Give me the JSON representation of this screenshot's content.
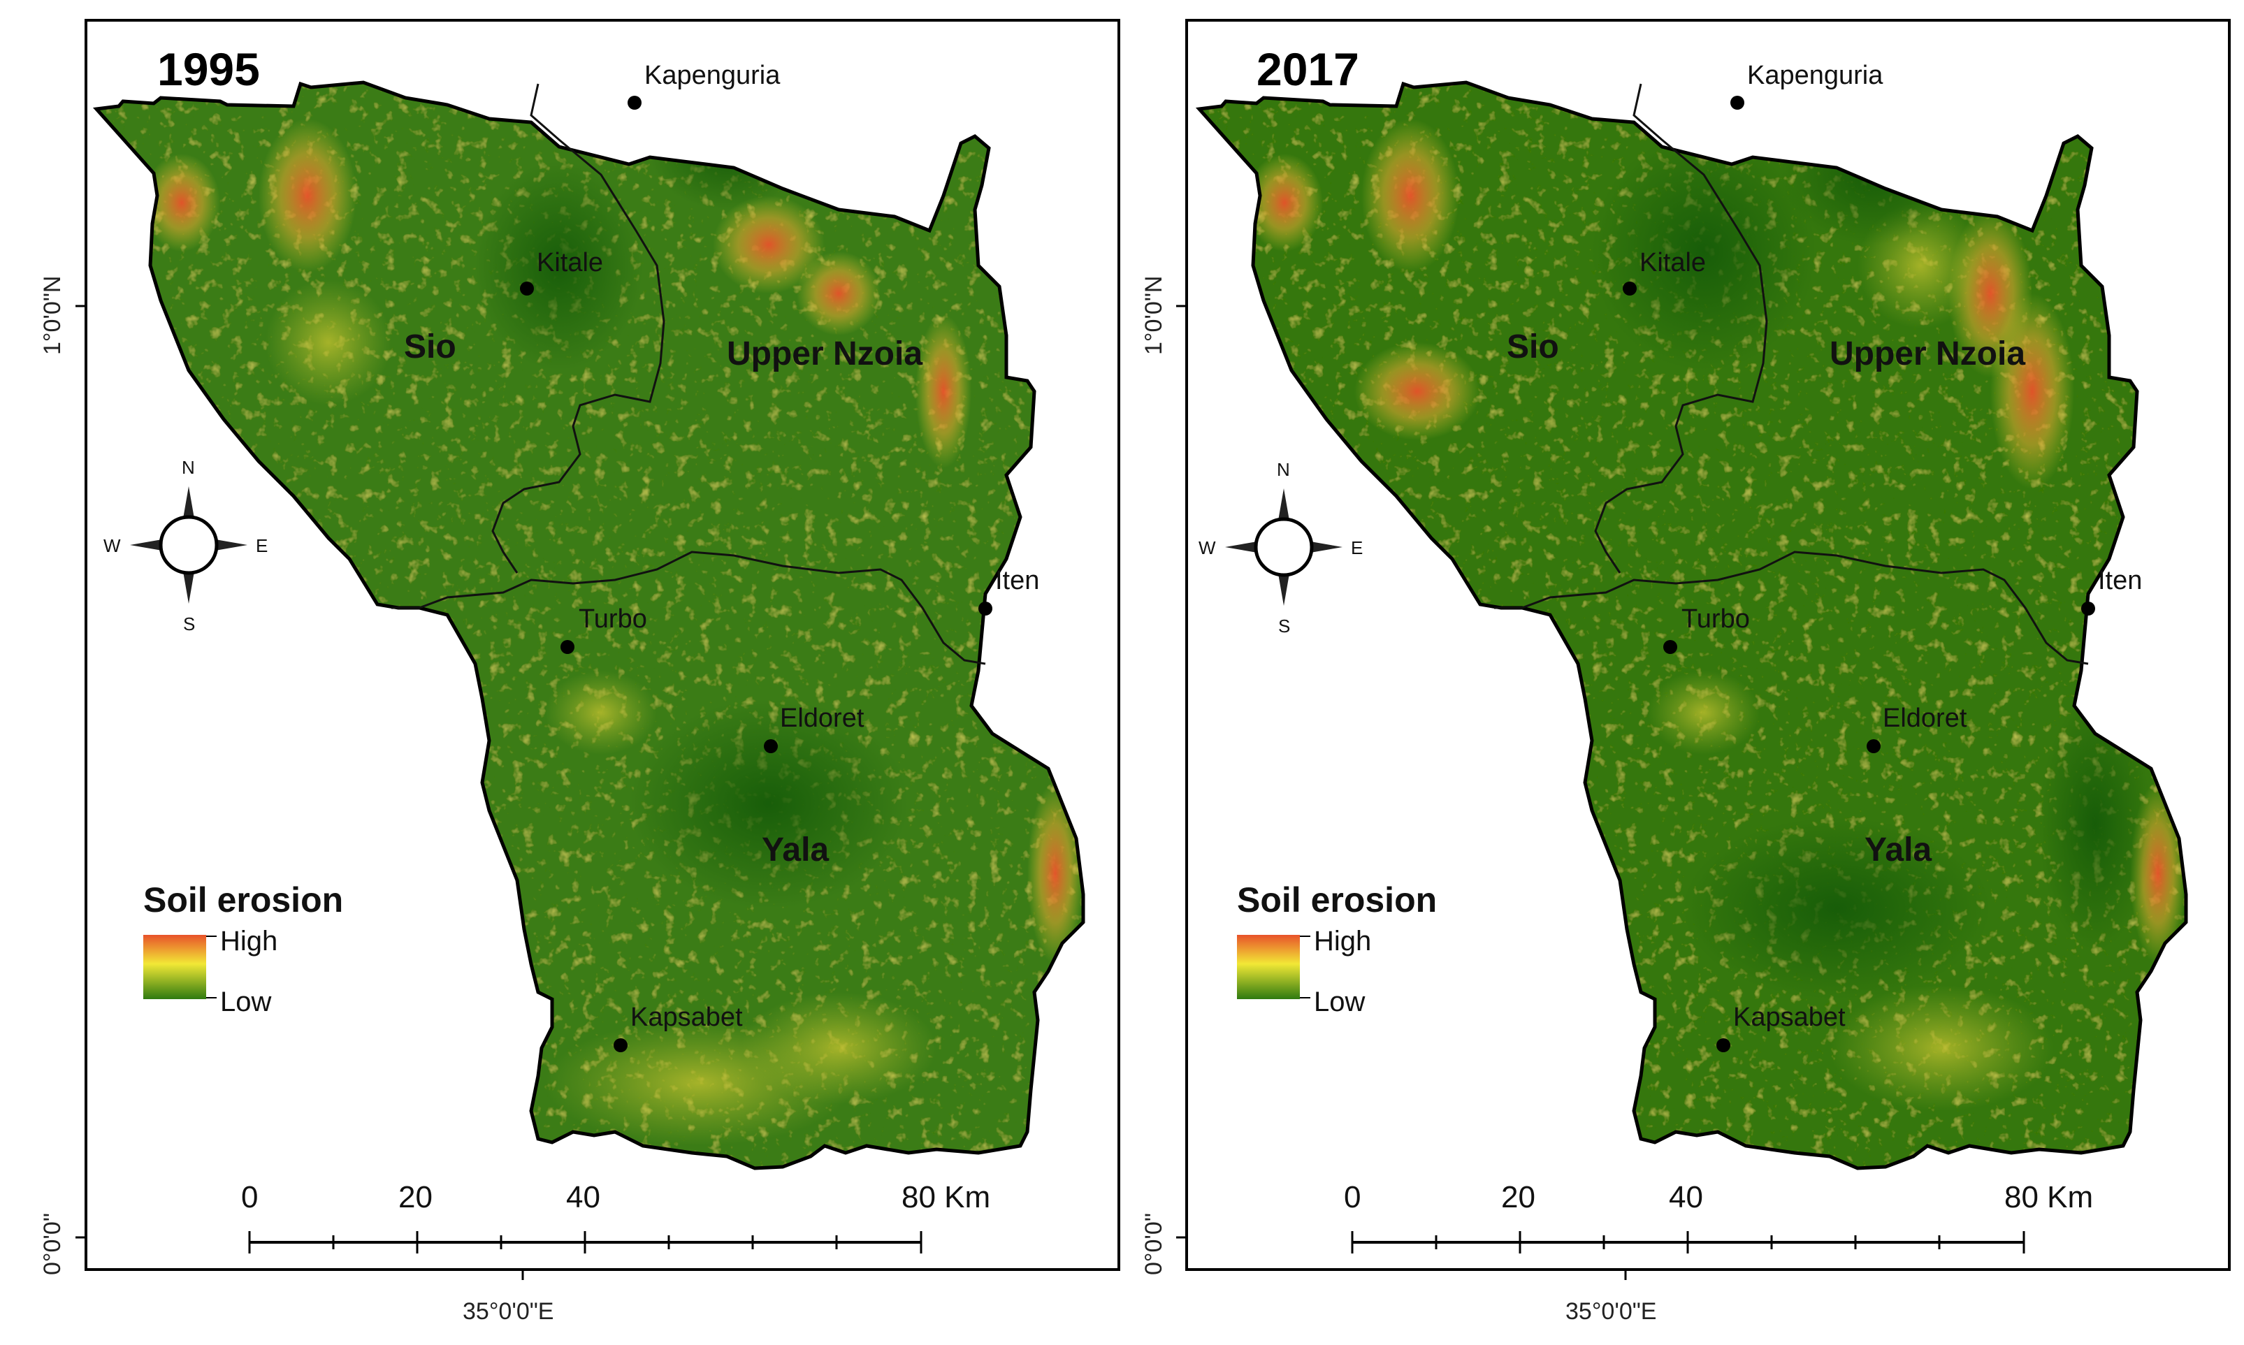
{
  "panels": [
    {
      "year": "1995",
      "regions": [
        "Sio",
        "Upper Nzoia",
        "Yala"
      ],
      "towns": [
        "Kapenguria",
        "Kitale",
        "Turbo",
        "Eldoret",
        "Iten",
        "Kapsabet"
      ],
      "legend": {
        "title": "Soil erosion",
        "high": "High",
        "low": "Low"
      },
      "scale": {
        "ticks": [
          "0",
          "20",
          "40",
          "80 Km"
        ]
      },
      "lat_labels": [
        "1°0'0\"N",
        "0°0'0\""
      ],
      "lon_label": "35°0'0\"E",
      "compass": {
        "n": "N",
        "s": "S",
        "e": "E",
        "w": "W"
      }
    },
    {
      "year": "2017",
      "regions": [
        "Sio",
        "Upper Nzoia",
        "Yala"
      ],
      "towns": [
        "Kapenguria",
        "Kitale",
        "Turbo",
        "Eldoret",
        "Iten",
        "Kapsabet"
      ],
      "legend": {
        "title": "Soil erosion",
        "high": "High",
        "low": "Low"
      },
      "scale": {
        "ticks": [
          "0",
          "20",
          "40",
          "80 Km"
        ]
      },
      "lat_labels": [
        "1°0'0\"N",
        "0°0'0\""
      ],
      "lon_label": "35°0'0\"E",
      "compass": {
        "n": "N",
        "s": "S",
        "e": "E",
        "w": "W"
      }
    }
  ],
  "colors": {
    "low": "#2f6b0e",
    "mid": "#f2e836",
    "high": "#e8522a",
    "frame": "#000000"
  }
}
